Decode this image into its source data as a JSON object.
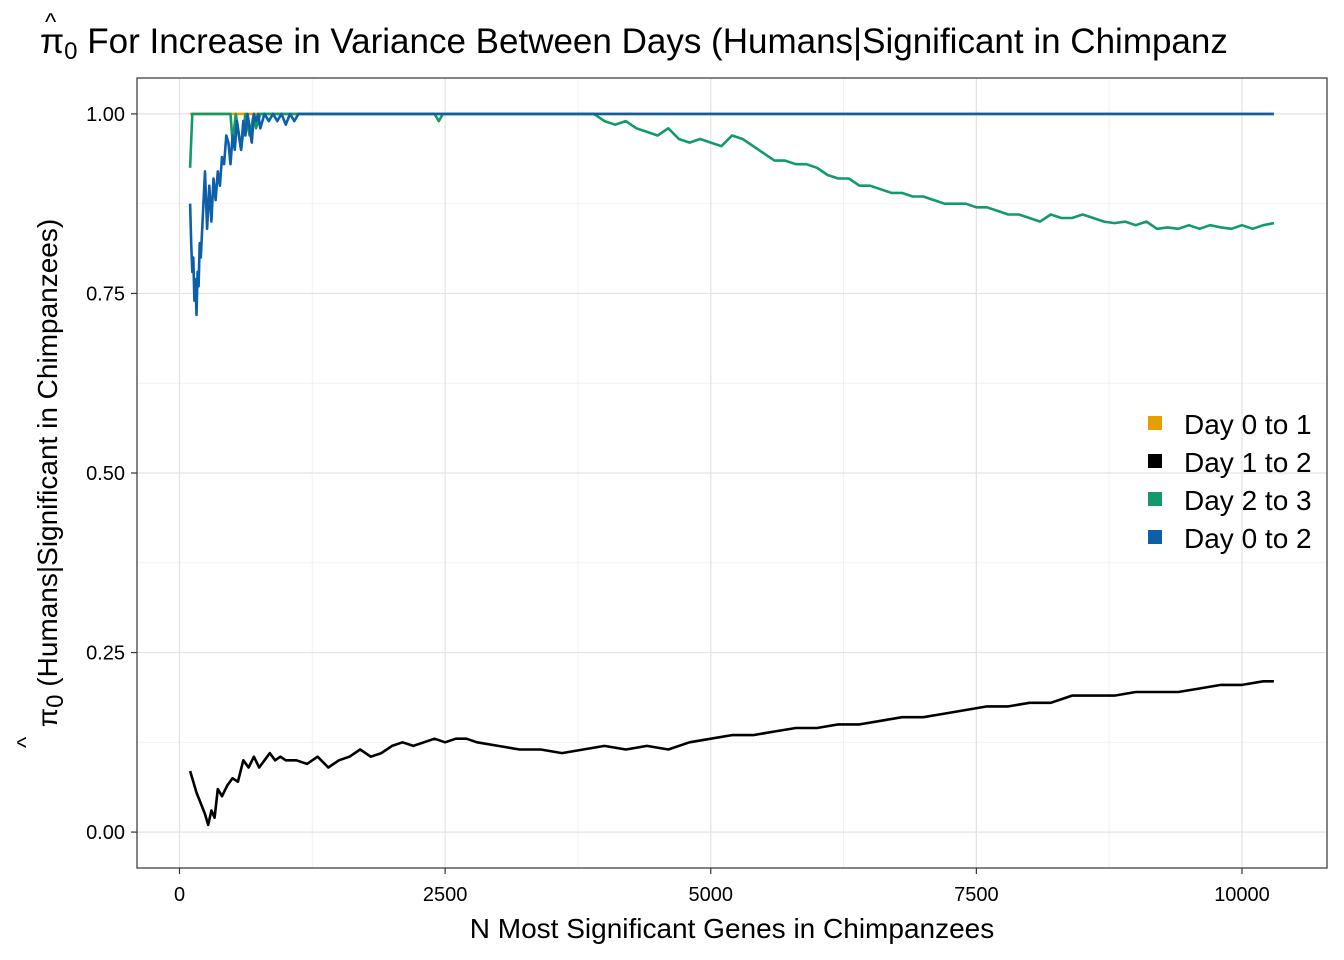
{
  "chart_data": {
    "type": "line",
    "title": "π̂0 For Increase in Variance Between Days (Humans|Significant in Chimpanz",
    "title_parts": {
      "symbol": "π",
      "hat": "^",
      "subscript": "0",
      "rest": " For Increase in Variance Between Days (Humans|Significant in Chimpanz"
    },
    "xlabel": "N Most Significant Genes in Chimpanzees",
    "ylabel": "π̂0 (Humans|Significant in Chimpanzees)",
    "ylabel_parts": {
      "symbol": "π",
      "hat": "^",
      "subscript": "0",
      "rest": " (Humans|Significant in Chimpanzees)"
    },
    "xlim": [
      -400,
      10800
    ],
    "ylim": [
      -0.05,
      1.05
    ],
    "xticks": [
      0,
      2500,
      5000,
      7500,
      10000
    ],
    "xtick_labels": [
      "0",
      "2500",
      "5000",
      "7500",
      "10000"
    ],
    "yticks": [
      0,
      0.25,
      0.5,
      0.75,
      1
    ],
    "ytick_labels": [
      "0.00",
      "0.25",
      "0.50",
      "0.75",
      "1.00"
    ],
    "grid": true,
    "legend_position": "right",
    "series": [
      {
        "name": "Day 0 to 1",
        "color": "#E69F00",
        "points": [
          [
            100,
            1.0
          ],
          [
            10300,
            1.0
          ]
        ]
      },
      {
        "name": "Day 1 to 2",
        "color": "#000000",
        "points": [
          [
            100,
            0.085
          ],
          [
            130,
            0.07
          ],
          [
            160,
            0.055
          ],
          [
            200,
            0.04
          ],
          [
            240,
            0.025
          ],
          [
            270,
            0.01
          ],
          [
            300,
            0.03
          ],
          [
            330,
            0.02
          ],
          [
            360,
            0.06
          ],
          [
            400,
            0.05
          ],
          [
            450,
            0.065
          ],
          [
            500,
            0.075
          ],
          [
            550,
            0.07
          ],
          [
            600,
            0.1
          ],
          [
            650,
            0.09
          ],
          [
            700,
            0.105
          ],
          [
            750,
            0.09
          ],
          [
            800,
            0.1
          ],
          [
            850,
            0.11
          ],
          [
            900,
            0.1
          ],
          [
            950,
            0.105
          ],
          [
            1000,
            0.1
          ],
          [
            1100,
            0.1
          ],
          [
            1200,
            0.095
          ],
          [
            1300,
            0.105
          ],
          [
            1400,
            0.09
          ],
          [
            1500,
            0.1
          ],
          [
            1600,
            0.105
          ],
          [
            1700,
            0.115
          ],
          [
            1800,
            0.105
          ],
          [
            1900,
            0.11
          ],
          [
            2000,
            0.12
          ],
          [
            2100,
            0.125
          ],
          [
            2200,
            0.12
          ],
          [
            2300,
            0.125
          ],
          [
            2400,
            0.13
          ],
          [
            2500,
            0.125
          ],
          [
            2600,
            0.13
          ],
          [
            2700,
            0.13
          ],
          [
            2800,
            0.125
          ],
          [
            3000,
            0.12
          ],
          [
            3200,
            0.115
          ],
          [
            3400,
            0.115
          ],
          [
            3600,
            0.11
          ],
          [
            3800,
            0.115
          ],
          [
            4000,
            0.12
          ],
          [
            4200,
            0.115
          ],
          [
            4400,
            0.12
          ],
          [
            4600,
            0.115
          ],
          [
            4800,
            0.125
          ],
          [
            5000,
            0.13
          ],
          [
            5200,
            0.135
          ],
          [
            5400,
            0.135
          ],
          [
            5600,
            0.14
          ],
          [
            5800,
            0.145
          ],
          [
            6000,
            0.145
          ],
          [
            6200,
            0.15
          ],
          [
            6400,
            0.15
          ],
          [
            6600,
            0.155
          ],
          [
            6800,
            0.16
          ],
          [
            7000,
            0.16
          ],
          [
            7200,
            0.165
          ],
          [
            7400,
            0.17
          ],
          [
            7600,
            0.175
          ],
          [
            7800,
            0.175
          ],
          [
            8000,
            0.18
          ],
          [
            8200,
            0.18
          ],
          [
            8400,
            0.19
          ],
          [
            8600,
            0.19
          ],
          [
            8800,
            0.19
          ],
          [
            9000,
            0.195
          ],
          [
            9200,
            0.195
          ],
          [
            9400,
            0.195
          ],
          [
            9600,
            0.2
          ],
          [
            9800,
            0.205
          ],
          [
            10000,
            0.205
          ],
          [
            10200,
            0.21
          ],
          [
            10300,
            0.21
          ]
        ]
      },
      {
        "name": "Day 2 to 3",
        "color": "#129A68",
        "points": [
          [
            100,
            0.925
          ],
          [
            120,
            1.0
          ],
          [
            200,
            1.0
          ],
          [
            300,
            1.0
          ],
          [
            400,
            1.0
          ],
          [
            480,
            1.0
          ],
          [
            500,
            0.96
          ],
          [
            530,
            1.0
          ],
          [
            580,
            0.95
          ],
          [
            620,
            1.0
          ],
          [
            660,
            0.97
          ],
          [
            700,
            1.0
          ],
          [
            720,
            0.98
          ],
          [
            760,
            1.0
          ],
          [
            2400,
            1.0
          ],
          [
            2440,
            0.99
          ],
          [
            2480,
            1.0
          ],
          [
            3800,
            1.0
          ],
          [
            3900,
            1.0
          ],
          [
            4000,
            0.99
          ],
          [
            4100,
            0.985
          ],
          [
            4200,
            0.99
          ],
          [
            4300,
            0.98
          ],
          [
            4400,
            0.975
          ],
          [
            4500,
            0.97
          ],
          [
            4600,
            0.98
          ],
          [
            4700,
            0.965
          ],
          [
            4800,
            0.96
          ],
          [
            4900,
            0.965
          ],
          [
            5000,
            0.96
          ],
          [
            5100,
            0.955
          ],
          [
            5200,
            0.97
          ],
          [
            5300,
            0.965
          ],
          [
            5400,
            0.955
          ],
          [
            5500,
            0.945
          ],
          [
            5600,
            0.935
          ],
          [
            5700,
            0.935
          ],
          [
            5800,
            0.93
          ],
          [
            5900,
            0.93
          ],
          [
            6000,
            0.925
          ],
          [
            6100,
            0.915
          ],
          [
            6200,
            0.91
          ],
          [
            6300,
            0.91
          ],
          [
            6400,
            0.9
          ],
          [
            6500,
            0.9
          ],
          [
            6600,
            0.895
          ],
          [
            6700,
            0.89
          ],
          [
            6800,
            0.89
          ],
          [
            6900,
            0.885
          ],
          [
            7000,
            0.885
          ],
          [
            7100,
            0.88
          ],
          [
            7200,
            0.875
          ],
          [
            7300,
            0.875
          ],
          [
            7400,
            0.875
          ],
          [
            7500,
            0.87
          ],
          [
            7600,
            0.87
          ],
          [
            7700,
            0.865
          ],
          [
            7800,
            0.86
          ],
          [
            7900,
            0.86
          ],
          [
            8000,
            0.855
          ],
          [
            8100,
            0.85
          ],
          [
            8200,
            0.86
          ],
          [
            8300,
            0.855
          ],
          [
            8400,
            0.855
          ],
          [
            8500,
            0.86
          ],
          [
            8600,
            0.855
          ],
          [
            8700,
            0.85
          ],
          [
            8800,
            0.848
          ],
          [
            8900,
            0.85
          ],
          [
            9000,
            0.845
          ],
          [
            9100,
            0.85
          ],
          [
            9200,
            0.84
          ],
          [
            9300,
            0.842
          ],
          [
            9400,
            0.84
          ],
          [
            9500,
            0.845
          ],
          [
            9600,
            0.84
          ],
          [
            9700,
            0.845
          ],
          [
            9800,
            0.842
          ],
          [
            9900,
            0.84
          ],
          [
            10000,
            0.845
          ],
          [
            10100,
            0.84
          ],
          [
            10200,
            0.845
          ],
          [
            10300,
            0.848
          ]
        ]
      },
      {
        "name": "Day 0 to 2",
        "color": "#0D5FAA",
        "points": [
          [
            100,
            0.875
          ],
          [
            110,
            0.82
          ],
          [
            120,
            0.78
          ],
          [
            130,
            0.8
          ],
          [
            140,
            0.74
          ],
          [
            150,
            0.77
          ],
          [
            160,
            0.72
          ],
          [
            170,
            0.78
          ],
          [
            180,
            0.76
          ],
          [
            190,
            0.82
          ],
          [
            200,
            0.8
          ],
          [
            220,
            0.86
          ],
          [
            240,
            0.92
          ],
          [
            260,
            0.84
          ],
          [
            280,
            0.9
          ],
          [
            300,
            0.85
          ],
          [
            320,
            0.91
          ],
          [
            340,
            0.88
          ],
          [
            360,
            0.92
          ],
          [
            380,
            0.9
          ],
          [
            400,
            0.94
          ],
          [
            420,
            0.93
          ],
          [
            440,
            0.97
          ],
          [
            460,
            0.96
          ],
          [
            480,
            0.93
          ],
          [
            500,
            0.97
          ],
          [
            520,
            0.95
          ],
          [
            540,
            0.99
          ],
          [
            560,
            0.97
          ],
          [
            580,
            0.95
          ],
          [
            600,
            0.99
          ],
          [
            620,
            0.97
          ],
          [
            640,
            1.0
          ],
          [
            660,
            0.98
          ],
          [
            680,
            0.96
          ],
          [
            700,
            1.0
          ],
          [
            720,
            0.99
          ],
          [
            740,
            1.0
          ],
          [
            760,
            0.98
          ],
          [
            800,
            1.0
          ],
          [
            840,
            0.99
          ],
          [
            880,
            1.0
          ],
          [
            920,
            0.99
          ],
          [
            960,
            1.0
          ],
          [
            1000,
            0.985
          ],
          [
            1040,
            1.0
          ],
          [
            1080,
            0.99
          ],
          [
            1120,
            1.0
          ],
          [
            1160,
            1.0
          ],
          [
            2000,
            1.0
          ],
          [
            4000,
            1.0
          ],
          [
            6000,
            1.0
          ],
          [
            8000,
            1.0
          ],
          [
            10300,
            1.0
          ]
        ]
      }
    ]
  }
}
